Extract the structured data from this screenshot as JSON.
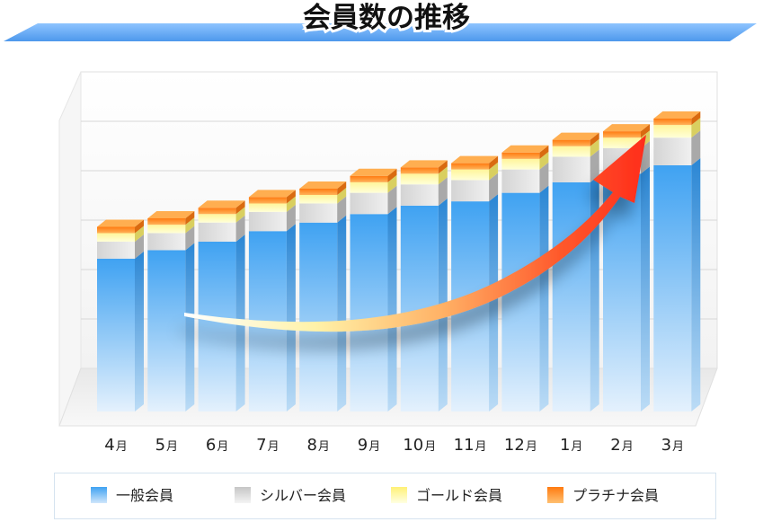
{
  "chart_data": {
    "type": "bar",
    "stacked": true,
    "title": "会員数の推移",
    "categories": [
      "4",
      "5",
      "6",
      "7",
      "8",
      "9",
      "10",
      "11",
      "12",
      "1",
      "2",
      "3"
    ],
    "category_unit": "月",
    "series": [
      {
        "name": "一般会員",
        "color": "#4aa8f0",
        "values": [
          36,
          38,
          40,
          42.5,
          44.5,
          46.5,
          48.5,
          49.5,
          51.5,
          54,
          56,
          58
        ]
      },
      {
        "name": "シルバー会員",
        "color": "#c9c9c9",
        "values": [
          4,
          4,
          4.5,
          4.5,
          4.5,
          5,
          5,
          5,
          5.5,
          6,
          6,
          6.5
        ]
      },
      {
        "name": "ゴールド会員",
        "color": "#fbf29a",
        "values": [
          2,
          2,
          2,
          2,
          2,
          2.5,
          2.5,
          2.5,
          2.5,
          2.5,
          2.5,
          3
        ]
      },
      {
        "name": "プラチナ会員",
        "color": "#ff8a1c",
        "values": [
          1.5,
          1.5,
          1.5,
          1.5,
          1.5,
          1.5,
          1.5,
          1.5,
          1.5,
          1.5,
          1.5,
          1.5
        ]
      }
    ],
    "ylim": [
      0,
      80
    ],
    "grid": true,
    "legend_position": "bottom",
    "annotation": "rising-trend-arrow"
  }
}
